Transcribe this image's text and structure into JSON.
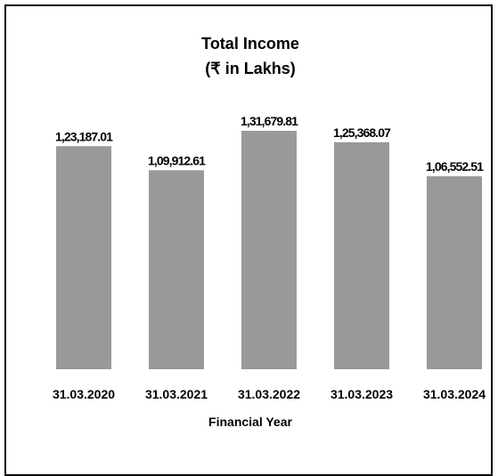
{
  "chart_data": {
    "type": "bar",
    "title": "Total Income",
    "subtitle": "(₹ in Lakhs)",
    "xlabel": "Financial Year",
    "ylabel": "",
    "categories": [
      "31.03.2020",
      "31.03.2021",
      "31.03.2022",
      "31.03.2023",
      "31.03.2024"
    ],
    "values": [
      123187.01,
      109912.61,
      131679.81,
      125368.07,
      106552.51
    ],
    "value_labels": [
      "1,23,187.01",
      "1,09,912.61",
      "1,31,679.81",
      "1,25,368.07",
      "1,06,552.51"
    ],
    "ylim": [
      0,
      140000
    ],
    "grid": false,
    "legend": "none",
    "bar_color": "#999999"
  }
}
